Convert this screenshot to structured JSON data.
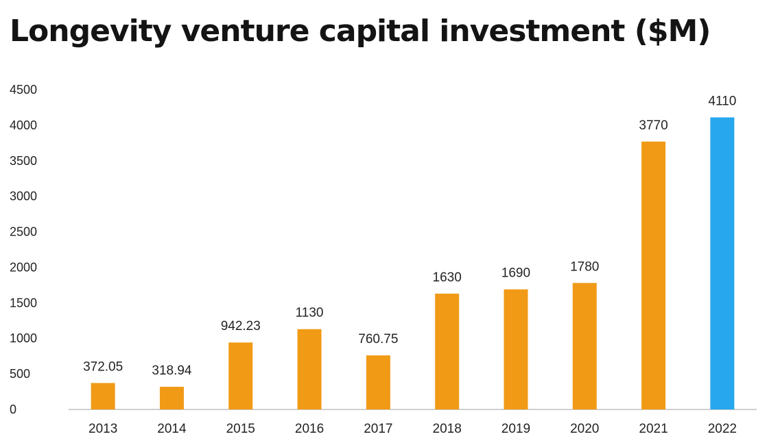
{
  "chart_data": {
    "type": "bar",
    "title": "Longevity venture capital investment ($M)",
    "xlabel": "",
    "ylabel": "",
    "categories": [
      "2013",
      "2014",
      "2015",
      "2016",
      "2017",
      "2018",
      "2019",
      "2020",
      "2021",
      "2022"
    ],
    "values": [
      372.05,
      318.94,
      942.23,
      1130,
      760.75,
      1630,
      1690,
      1780,
      3770,
      4110
    ],
    "value_labels": [
      "372.05",
      "318.94",
      "942.23",
      "1130",
      "760.75",
      "1630",
      "1690",
      "1780",
      "3770",
      "4110"
    ],
    "ylim": [
      0,
      4500
    ],
    "yticks": [
      0,
      500,
      1000,
      1500,
      2000,
      2500,
      3000,
      3500,
      4000,
      4500
    ],
    "grid": false,
    "legend": "none",
    "colors": {
      "default_bar": "#F09A16",
      "highlight_bar": "#27A7EE",
      "axis_line": "#B5B5B5"
    },
    "highlight_category": "2022"
  }
}
